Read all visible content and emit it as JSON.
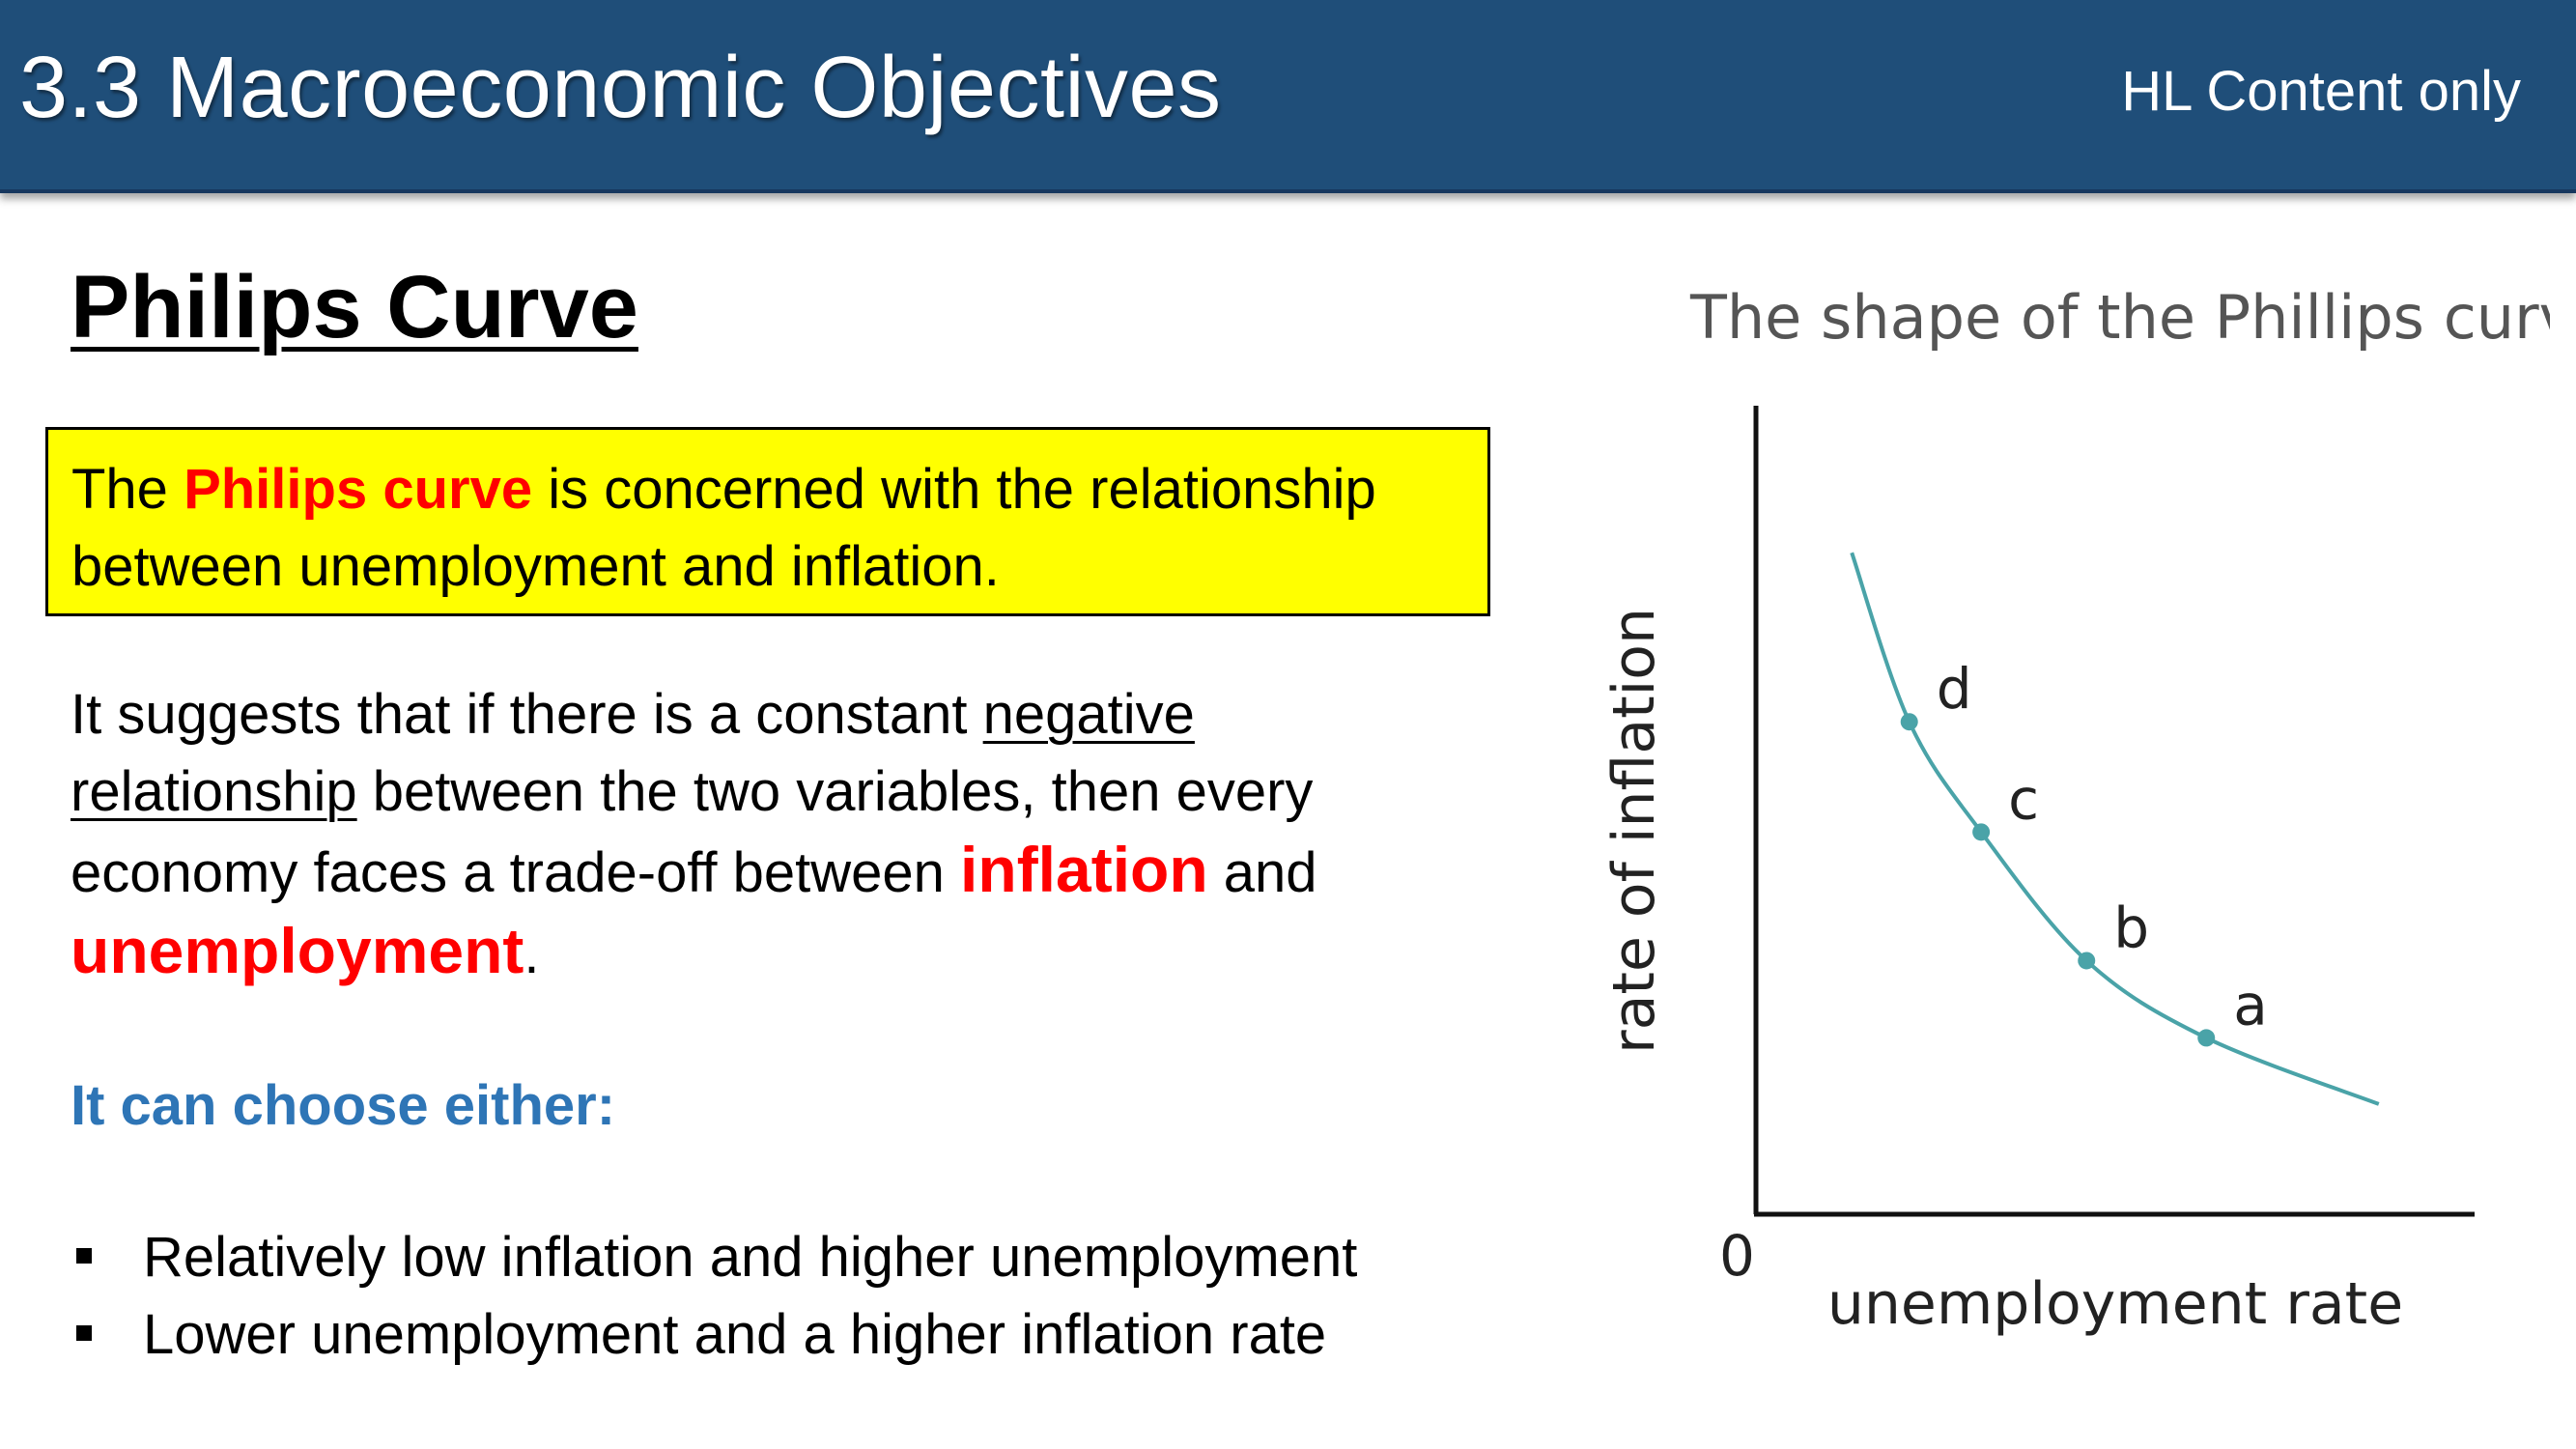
{
  "header": {
    "title": "3.3 Macroeconomic Objectives",
    "subtitle": "HL Content only",
    "background": "#1f4e79"
  },
  "section": {
    "heading": "Philips Curve"
  },
  "definition": {
    "prefix": "The ",
    "highlight": "Philips curve",
    "suffix": " is concerned with the relationship between unemployment and inflation.",
    "background": "#ffff00",
    "highlight_color": "#ff0000"
  },
  "paragraph": {
    "text1": "It suggests that if there is a constant ",
    "underline1": "negative",
    "space": " ",
    "underline2": "relationship",
    "text2": " between the two variables, then every economy faces a trade-off between ",
    "red1": "inflation",
    "and": " and ",
    "red2": "unemployment",
    "end": "."
  },
  "choose": {
    "text": "It can choose either:",
    "color": "#2e75b6"
  },
  "bullets": [
    "Relatively low inflation and higher unemployment",
    "Lower unemployment and a higher inflation rate"
  ],
  "chart_data": {
    "type": "line",
    "title": "The shape of the Phillips curve",
    "xlabel": "unemployment rate",
    "ylabel": "rate of inflation",
    "origin_label": "0",
    "curve_color": "#4aa3a8",
    "points": [
      {
        "label": "d",
        "x": 1.6,
        "y": 6.7
      },
      {
        "label": "c",
        "x": 2.35,
        "y": 5.2
      },
      {
        "label": "b",
        "x": 3.45,
        "y": 3.45
      },
      {
        "label": "a",
        "x": 4.7,
        "y": 2.4
      }
    ],
    "curve": {
      "x": [
        1.0,
        1.6,
        2.35,
        3.45,
        4.7,
        6.5
      ],
      "y": [
        9.0,
        6.7,
        5.2,
        3.45,
        2.4,
        1.5
      ]
    },
    "xlim": [
      0,
      7.5
    ],
    "ylim": [
      0,
      11
    ],
    "grid": false
  }
}
